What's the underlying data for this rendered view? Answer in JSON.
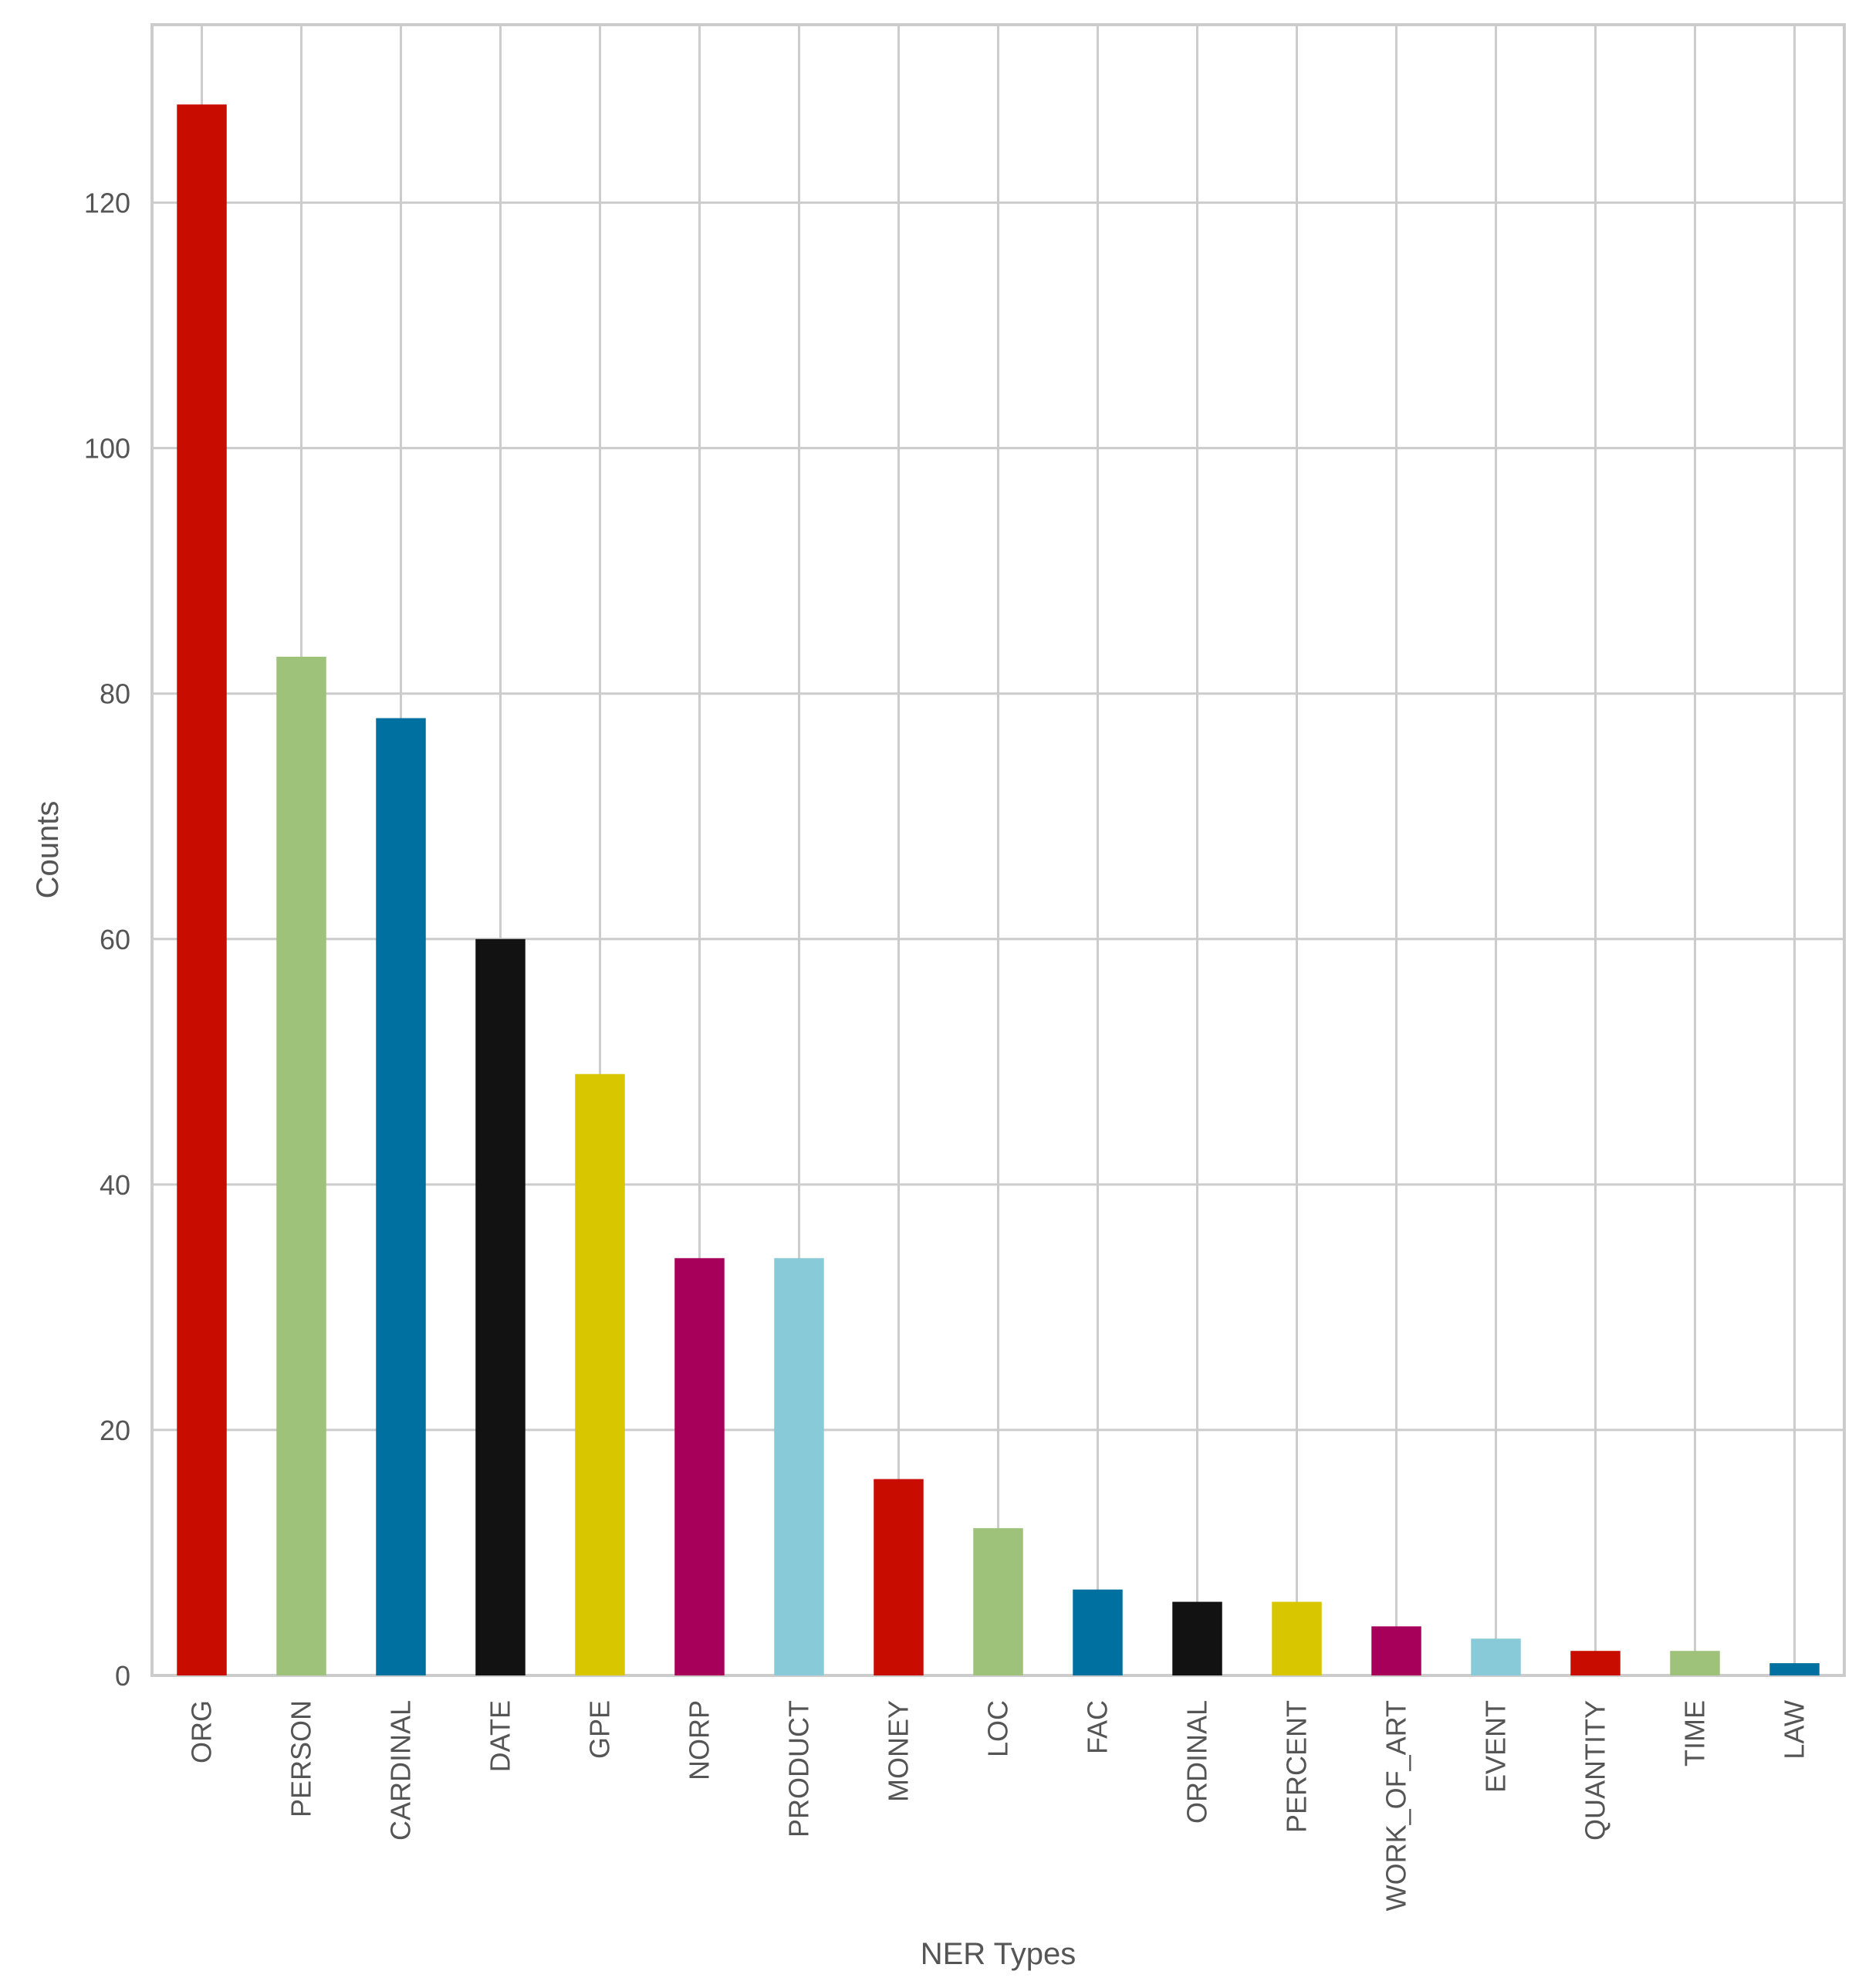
{
  "chart_data": {
    "type": "bar",
    "title": "",
    "xlabel": "NER Types",
    "ylabel": "Counts",
    "categories": [
      "ORG",
      "PERSON",
      "CARDINAL",
      "DATE",
      "GPE",
      "NORP",
      "PRODUCT",
      "MONEY",
      "LOC",
      "FAC",
      "ORDINAL",
      "PERCENT",
      "WORK_OF_ART",
      "EVENT",
      "QUANTITY",
      "TIME",
      "LAW"
    ],
    "values": [
      128,
      83,
      78,
      60,
      49,
      34,
      34,
      16,
      12,
      7,
      6,
      6,
      4,
      3,
      2,
      2,
      1
    ],
    "colors": [
      "#c80d00",
      "#9fc27a",
      "#0070a1",
      "#121212",
      "#d7c600",
      "#a6005a",
      "#89cad9",
      "#c80d00",
      "#9fc27a",
      "#0070a1",
      "#121212",
      "#d7c600",
      "#a6005a",
      "#89cad9",
      "#c80d00",
      "#9fc27a",
      "#0070a1"
    ],
    "ylim": [
      0,
      134.5
    ],
    "yticks": [
      0,
      20,
      40,
      60,
      80,
      100,
      120
    ],
    "grid": true,
    "legend": "none"
  }
}
